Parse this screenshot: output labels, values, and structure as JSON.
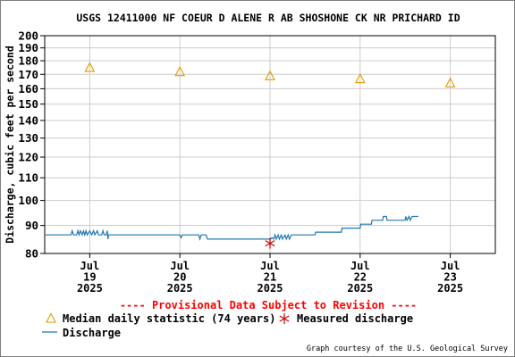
{
  "chart_data": {
    "type": "line",
    "title": "USGS 12411000 NF COEUR D ALENE R AB SHOSHONE CK NR PRICHARD ID",
    "ylabel": "Discharge, cubic feet per second",
    "yscale": "log",
    "ylim": [
      80,
      200
    ],
    "yticks": [
      80,
      90,
      100,
      110,
      120,
      130,
      140,
      150,
      160,
      170,
      180,
      190,
      200
    ],
    "xlim": [
      "2025-07-18 12:00",
      "2025-07-23 12:00"
    ],
    "xticks": [
      {
        "x": "2025-07-19",
        "lines": [
          "Jul",
          "19",
          "2025"
        ]
      },
      {
        "x": "2025-07-20",
        "lines": [
          "Jul",
          "20",
          "2025"
        ]
      },
      {
        "x": "2025-07-21",
        "lines": [
          "Jul",
          "21",
          "2025"
        ]
      },
      {
        "x": "2025-07-22",
        "lines": [
          "Jul",
          "22",
          "2025"
        ]
      },
      {
        "x": "2025-07-23",
        "lines": [
          "Jul",
          "23",
          "2025"
        ]
      }
    ],
    "grid": true,
    "series": [
      {
        "name": "Discharge",
        "color": "#1f77b4",
        "points": [
          [
            "2025-07-18 12:00",
            86.5
          ],
          [
            "2025-07-18 19:00",
            86.5
          ],
          [
            "2025-07-18 19:20",
            88
          ],
          [
            "2025-07-18 19:40",
            86.5
          ],
          [
            "2025-07-18 20:30",
            86.5
          ],
          [
            "2025-07-18 20:50",
            88
          ],
          [
            "2025-07-18 21:10",
            86.5
          ],
          [
            "2025-07-18 21:30",
            88
          ],
          [
            "2025-07-18 22:00",
            86.5
          ],
          [
            "2025-07-18 22:20",
            88
          ],
          [
            "2025-07-18 22:40",
            86.5
          ],
          [
            "2025-07-18 23:00",
            88
          ],
          [
            "2025-07-18 23:20",
            86.5
          ],
          [
            "2025-07-19 00:00",
            88
          ],
          [
            "2025-07-19 00:30",
            86.5
          ],
          [
            "2025-07-19 01:00",
            88
          ],
          [
            "2025-07-19 01:20",
            86.5
          ],
          [
            "2025-07-19 02:00",
            88
          ],
          [
            "2025-07-19 02:20",
            86.5
          ],
          [
            "2025-07-19 03:10",
            86.5
          ],
          [
            "2025-07-19 03:30",
            88
          ],
          [
            "2025-07-19 03:50",
            86.5
          ],
          [
            "2025-07-19 04:20",
            86.5
          ],
          [
            "2025-07-19 04:40",
            88
          ],
          [
            "2025-07-19 04:50",
            85
          ],
          [
            "2025-07-19 05:00",
            86.5
          ],
          [
            "2025-07-20 00:00",
            86.5
          ],
          [
            "2025-07-20 00:20",
            85.5
          ],
          [
            "2025-07-20 00:40",
            86.5
          ],
          [
            "2025-07-20 05:00",
            86.5
          ],
          [
            "2025-07-20 05:20",
            85
          ],
          [
            "2025-07-20 05:40",
            86.5
          ],
          [
            "2025-07-20 07:00",
            86.5
          ],
          [
            "2025-07-20 07:20",
            85
          ],
          [
            "2025-07-20 07:30",
            85
          ],
          [
            "2025-07-21 00:10",
            85
          ],
          [
            "2025-07-21 00:30",
            85.5
          ],
          [
            "2025-07-21 01:00",
            85
          ],
          [
            "2025-07-21 01:20",
            86.5
          ],
          [
            "2025-07-21 01:40",
            85
          ],
          [
            "2025-07-21 02:10",
            86.5
          ],
          [
            "2025-07-21 02:30",
            85
          ],
          [
            "2025-07-21 03:00",
            86.5
          ],
          [
            "2025-07-21 03:20",
            85
          ],
          [
            "2025-07-21 04:00",
            86.5
          ],
          [
            "2025-07-21 04:20",
            85
          ],
          [
            "2025-07-21 04:50",
            86.5
          ],
          [
            "2025-07-21 05:10",
            85
          ],
          [
            "2025-07-21 05:40",
            86.5
          ],
          [
            "2025-07-21 06:00",
            86.5
          ],
          [
            "2025-07-21 12:00",
            86.5
          ],
          [
            "2025-07-21 12:10",
            87.5
          ],
          [
            "2025-07-21 19:00",
            87.5
          ],
          [
            "2025-07-21 19:10",
            89
          ],
          [
            "2025-07-22 00:00",
            89
          ],
          [
            "2025-07-22 00:10",
            90.5
          ],
          [
            "2025-07-22 03:00",
            90.5
          ],
          [
            "2025-07-22 03:10",
            92
          ],
          [
            "2025-07-22 06:00",
            92
          ],
          [
            "2025-07-22 06:10",
            93.5
          ],
          [
            "2025-07-22 07:00",
            93.5
          ],
          [
            "2025-07-22 07:10",
            92
          ],
          [
            "2025-07-22 12:00",
            92
          ],
          [
            "2025-07-22 12:10",
            93.5
          ],
          [
            "2025-07-22 12:30",
            92
          ],
          [
            "2025-07-22 13:00",
            93.5
          ],
          [
            "2025-07-22 13:20",
            92
          ],
          [
            "2025-07-22 13:50",
            93.5
          ],
          [
            "2025-07-22 14:00",
            93.5
          ],
          [
            "2025-07-22 15:30",
            93.5
          ]
        ]
      },
      {
        "name": "Median daily statistic (74 years)",
        "color": "#e69a00",
        "marker": "triangle",
        "points": [
          [
            "2025-07-19",
            175
          ],
          [
            "2025-07-20",
            172
          ],
          [
            "2025-07-21",
            169
          ],
          [
            "2025-07-22",
            167
          ],
          [
            "2025-07-23",
            164
          ]
        ]
      },
      {
        "name": "Measured discharge",
        "color": "#cc0000",
        "marker": "asterisk",
        "points": [
          [
            "2025-07-21",
            83.5
          ]
        ]
      }
    ],
    "legend": {
      "position": "bottom",
      "median_label": "Median daily statistic (74 years)",
      "measured_label": "Measured discharge",
      "discharge_label": "Discharge"
    },
    "annotations": {
      "provisional": "---- Provisional Data Subject to Revision ----",
      "credit": "Graph courtesy of the U.S. Geological Survey"
    },
    "colors": {
      "grid": "#cccccc",
      "axis": "#000000",
      "provisional": "#ff0000"
    }
  }
}
